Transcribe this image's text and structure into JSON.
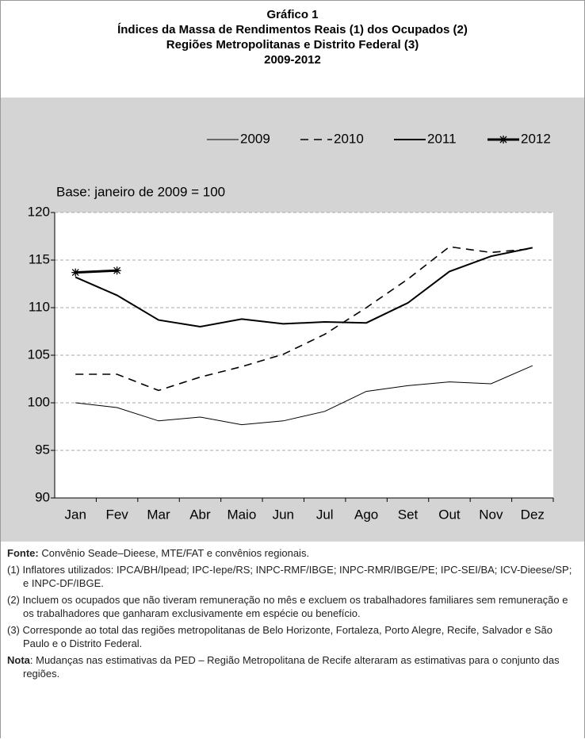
{
  "chart_data": {
    "type": "line",
    "title": [
      "Gráfico 1",
      "Índices da Massa de Rendimentos Reais (1) dos Ocupados (2)",
      "Regiões Metropolitanas e Distrito Federal (3)",
      "2009-2012"
    ],
    "subtitle": "Base: janeiro de 2009 = 100",
    "categories": [
      "Jan",
      "Fev",
      "Mar",
      "Abr",
      "Maio",
      "Jun",
      "Jul",
      "Ago",
      "Set",
      "Out",
      "Nov",
      "Dez"
    ],
    "series": [
      {
        "name": "2009",
        "color": "#000000",
        "width": 1,
        "dash": false,
        "marker": false,
        "values": [
          100,
          99.5,
          98.1,
          98.5,
          97.7,
          98.1,
          99.1,
          101.2,
          101.8,
          102.2,
          102.0,
          103.9
        ]
      },
      {
        "name": "2010",
        "color": "#000000",
        "width": 1.6,
        "dash": true,
        "marker": false,
        "values": [
          103.0,
          103.0,
          101.3,
          102.7,
          103.8,
          105.1,
          107.2,
          110.0,
          113.0,
          116.4,
          115.8,
          116.2
        ]
      },
      {
        "name": "2011",
        "color": "#000000",
        "width": 2,
        "dash": false,
        "marker": false,
        "values": [
          113.2,
          111.3,
          108.7,
          108.0,
          108.8,
          108.3,
          108.5,
          108.4,
          110.5,
          113.8,
          115.4,
          116.3
        ]
      },
      {
        "name": "2012",
        "color": "#000000",
        "width": 3,
        "dash": false,
        "marker": true,
        "values": [
          113.7,
          113.9,
          null,
          null,
          null,
          null,
          null,
          null,
          null,
          null,
          null,
          null
        ]
      }
    ],
    "ylim": [
      90,
      120
    ],
    "yticks": [
      90,
      95,
      100,
      105,
      110,
      115,
      120
    ],
    "grid": true,
    "notes": [
      {
        "label": "Fonte:",
        "text": "Convênio Seade–Dieese, MTE/FAT e convênios regionais."
      },
      {
        "label": "(1)",
        "text": "Inflatores utilizados: IPCA/BH/Ipead; IPC-Iepe/RS; INPC-RMF/IBGE; INPC-RMR/IBGE/PE; IPC-SEI/BA; ICV-Dieese/SP; e INPC-DF/IBGE."
      },
      {
        "label": "(2)",
        "text": "Incluem os ocupados que não tiveram remuneração no mês e excluem os trabalhadores familiares sem remuneração e os trabalhadores que ganharam exclusivamente em espécie ou benefício."
      },
      {
        "label": "(3)",
        "text": "Corresponde ao total das regiões metropolitanas de Belo Horizonte, Fortaleza, Porto Alegre, Recife, Salvador e São Paulo e o Distrito Federal."
      },
      {
        "label": "Nota",
        "text": ": Mudanças nas estimativas da PED – Região Metropolitana de Recife alteraram as estimativas para o conjunto das regiões."
      }
    ]
  }
}
